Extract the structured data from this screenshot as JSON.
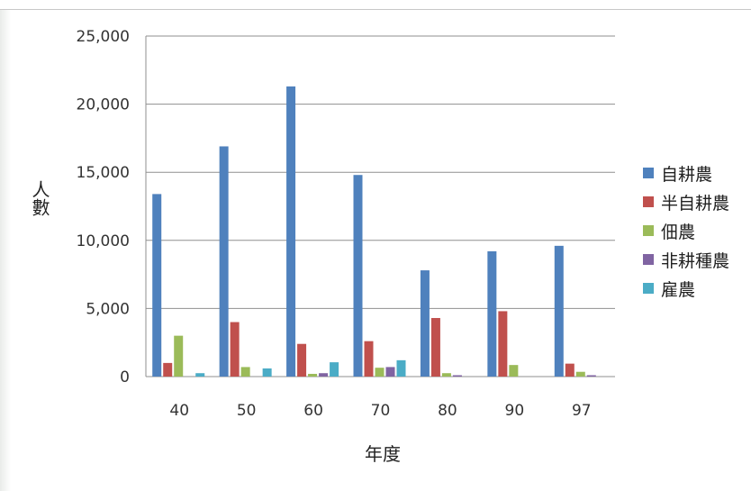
{
  "chart_data": {
    "type": "bar",
    "title": "",
    "xlabel": "年度",
    "ylabel": "人數",
    "categories": [
      "40",
      "50",
      "60",
      "70",
      "80",
      "90",
      "97"
    ],
    "ylim": [
      0,
      25000
    ],
    "yticks": [
      0,
      5000,
      10000,
      15000,
      20000,
      25000
    ],
    "ytick_labels": [
      "0",
      "5,000",
      "10,000",
      "15,000",
      "20,000",
      "25,000"
    ],
    "grid": true,
    "legend_position": "right",
    "series": [
      {
        "name": "自耕農",
        "color": "#4f81bd",
        "values": [
          13400,
          16900,
          21300,
          14800,
          7800,
          9200,
          9600
        ]
      },
      {
        "name": "半自耕農",
        "color": "#c0504d",
        "values": [
          1000,
          4000,
          2400,
          2600,
          4300,
          4800,
          950
        ]
      },
      {
        "name": "佃農",
        "color": "#9bbb59",
        "values": [
          3000,
          700,
          200,
          650,
          250,
          850,
          350
        ]
      },
      {
        "name": "非耕種農",
        "color": "#8064a2",
        "values": [
          0,
          0,
          250,
          700,
          100,
          0,
          100
        ]
      },
      {
        "name": "雇農",
        "color": "#4bacc6",
        "values": [
          250,
          600,
          1050,
          1200,
          0,
          0,
          0
        ]
      }
    ]
  }
}
